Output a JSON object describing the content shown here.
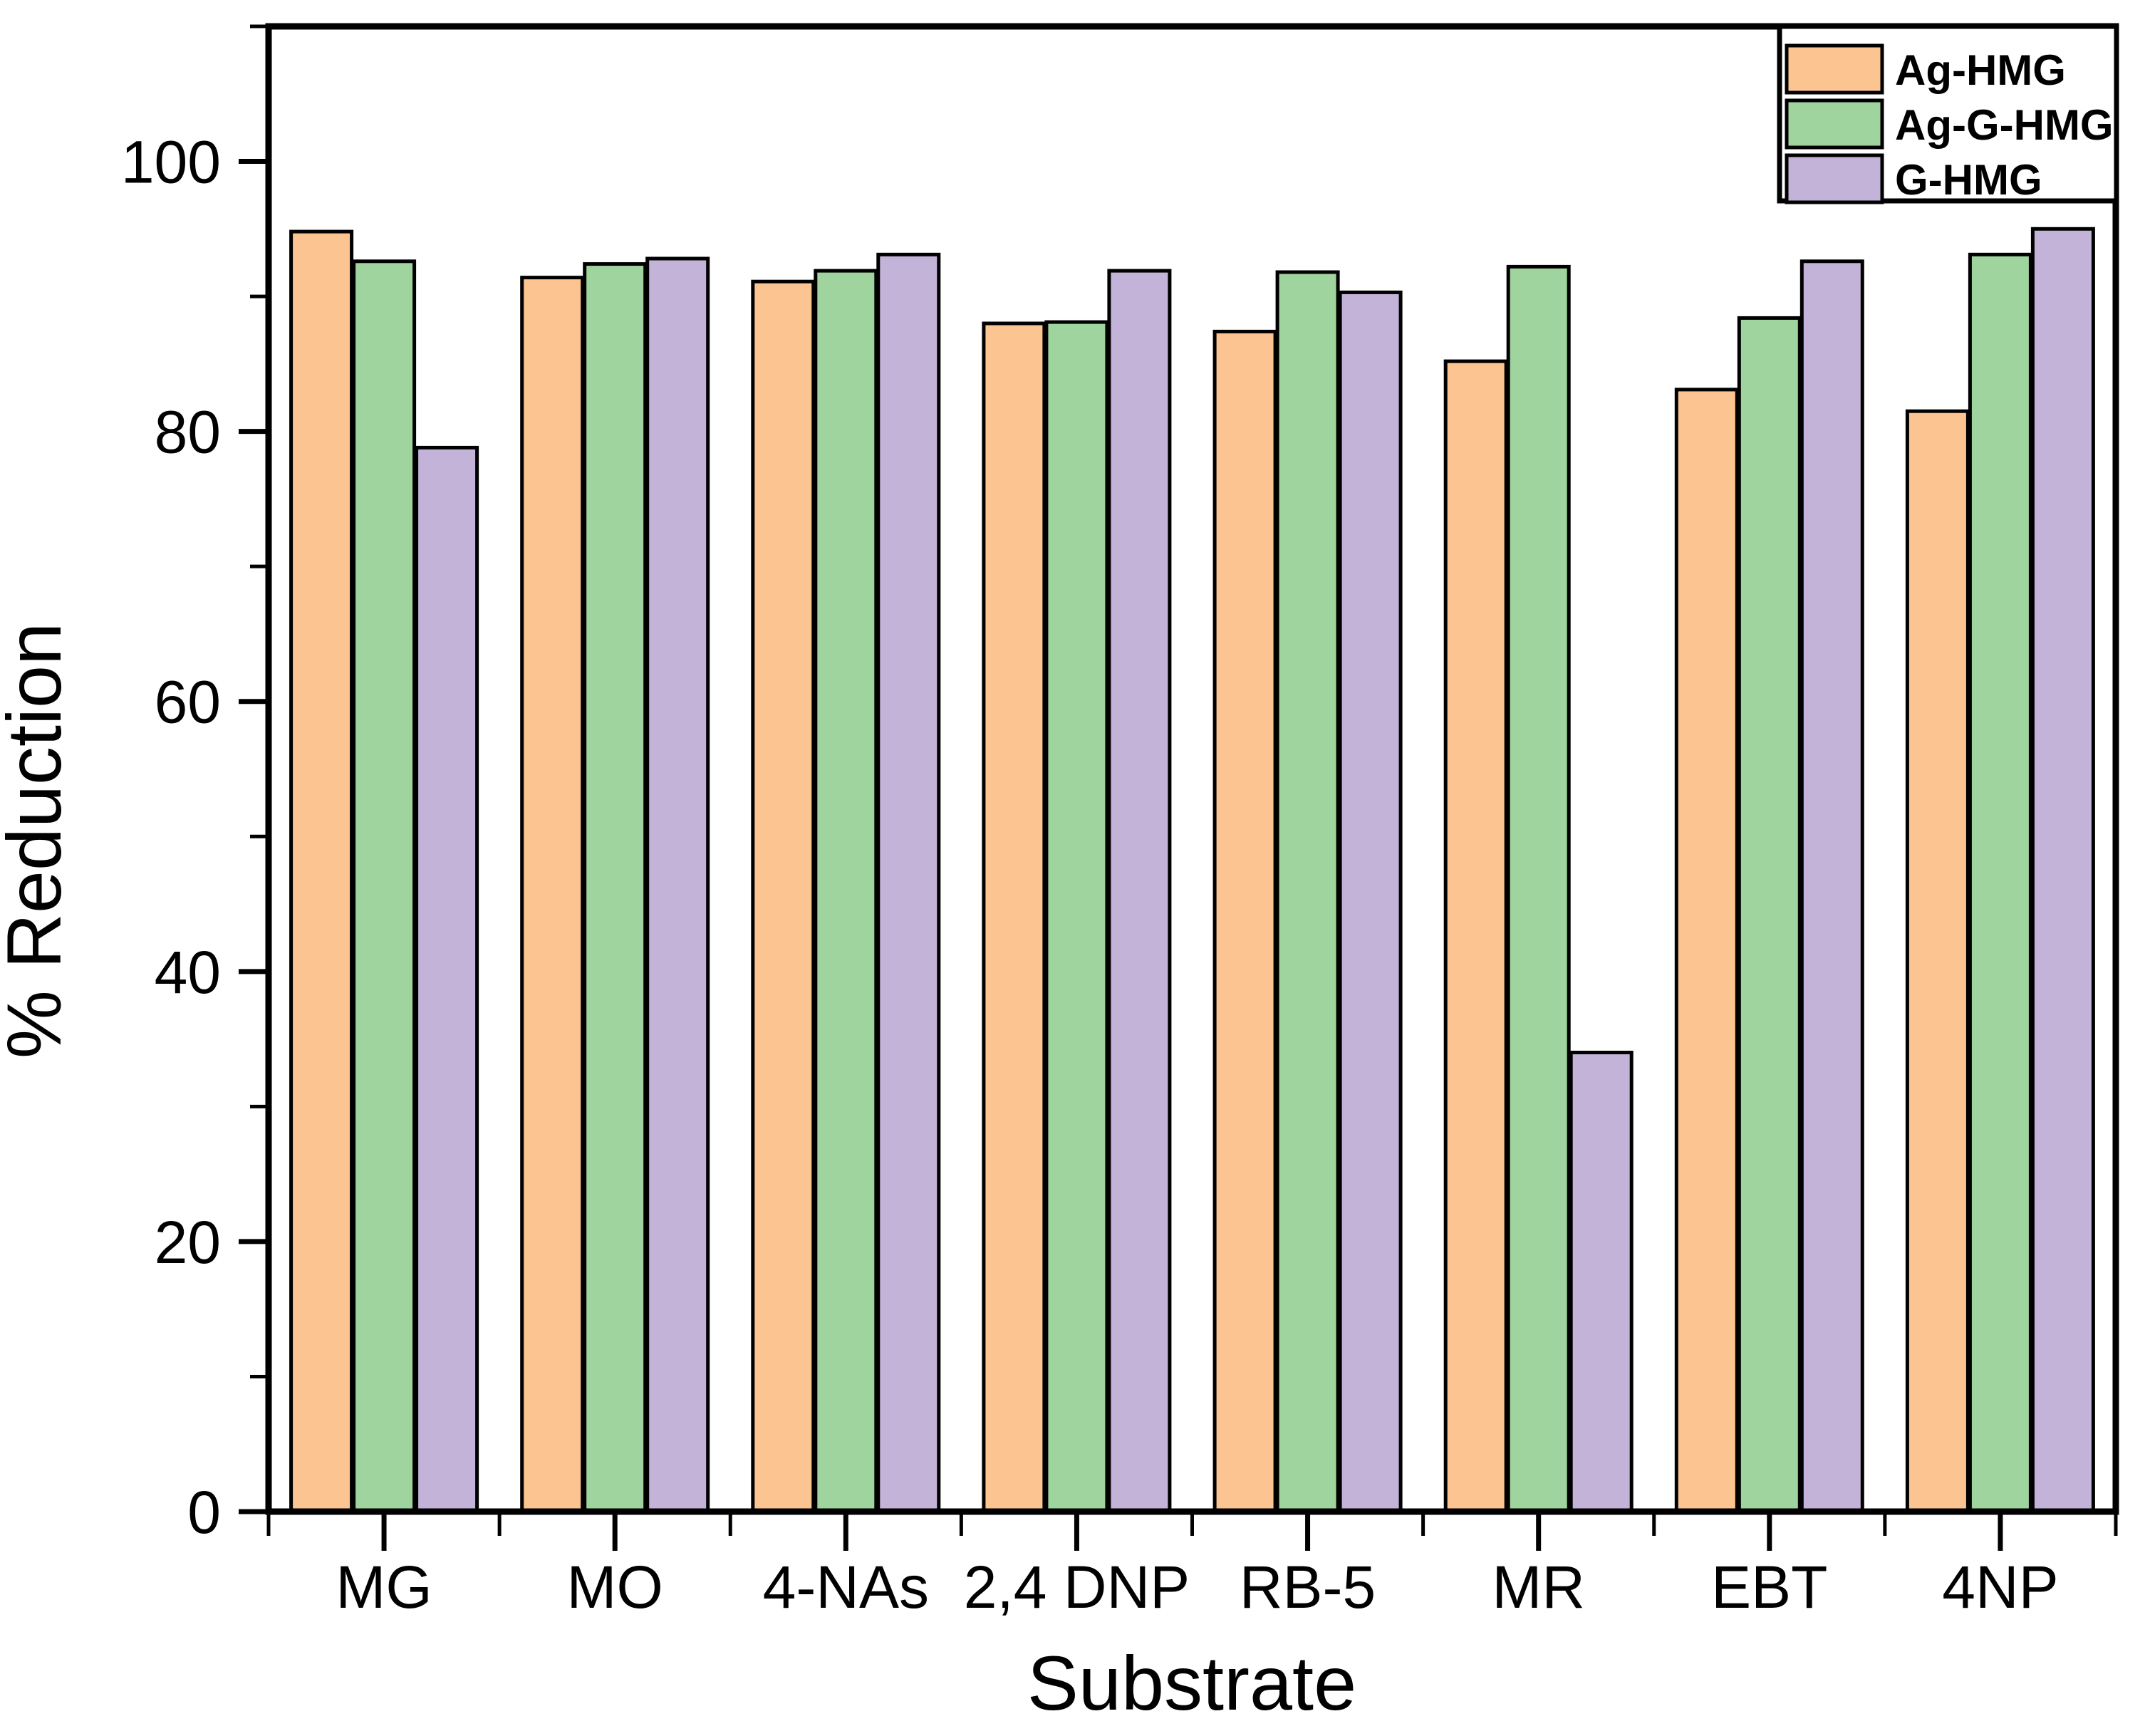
{
  "chart_data": {
    "type": "bar",
    "title": "",
    "xlabel": "Substrate",
    "ylabel": "% Reduction",
    "categories": [
      "MG",
      "MO",
      "4-NAs",
      "2,4 DNP",
      "RB-5",
      "MR",
      "EBT",
      "4NP"
    ],
    "series": [
      {
        "name": "Ag-HMG",
        "color": "#FBC490",
        "values": [
          94.8,
          91.4,
          91.1,
          88.0,
          87.4,
          85.2,
          83.1,
          81.5
        ]
      },
      {
        "name": "Ag-G-HMG",
        "color": "#A0D49E",
        "values": [
          92.6,
          92.4,
          91.9,
          88.1,
          91.8,
          92.2,
          88.4,
          93.1
        ]
      },
      {
        "name": "G-HMG",
        "color": "#C4B3D8",
        "values": [
          78.8,
          92.8,
          93.1,
          91.9,
          90.3,
          34.0,
          92.6,
          95.0
        ]
      }
    ],
    "ylim": [
      0,
      110
    ],
    "yticks": [
      0,
      20,
      40,
      60,
      80,
      100
    ],
    "y_minor_tick_step": 10,
    "x_minor_ticks_at_group_boundaries": true,
    "grid": false,
    "legend_position": "top-right",
    "bar_border_color": "#000000",
    "frame_color": "#000000",
    "background_color": "#FFFFFF"
  }
}
